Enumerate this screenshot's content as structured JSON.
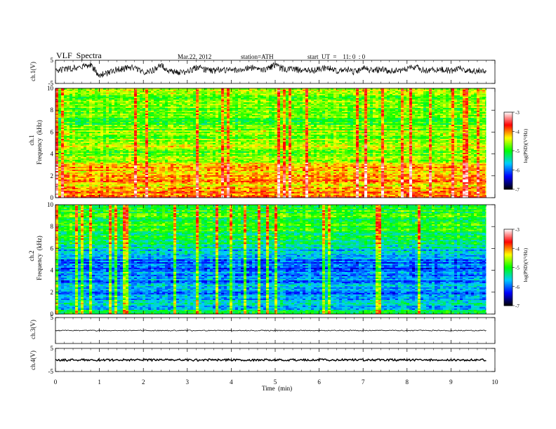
{
  "header": {
    "title": "VLF  Spectra",
    "date": "Mar.22, 2012",
    "station": "station=ATH",
    "start": "start  UT  =    11: 0  : 0"
  },
  "chart_data": [
    {
      "type": "line",
      "channel": "ch.1",
      "ylabel": "ch.1(V)",
      "ylim": [
        -5,
        5
      ],
      "yticks": [
        "5",
        "-5"
      ],
      "x": [
        0,
        0.2,
        0.4,
        0.6,
        0.8,
        1.0,
        1.2,
        1.4,
        1.6,
        1.8,
        2.0,
        2.2,
        2.4,
        2.6,
        2.8,
        3.0,
        3.2,
        3.4,
        3.6,
        3.8,
        4.0,
        4.2,
        4.4,
        4.6,
        4.8,
        5.0,
        5.2,
        5.4,
        5.6,
        5.8,
        6.0,
        6.2,
        6.4,
        6.6,
        6.8,
        7.0,
        7.2,
        7.4,
        7.6,
        7.8,
        8.0,
        8.2,
        8.4,
        8.6,
        8.8,
        9.0,
        9.2,
        9.4,
        9.6,
        9.8
      ],
      "values": [
        0.5,
        1.0,
        1.5,
        2.5,
        2.8,
        -1.5,
        -0.5,
        1.0,
        1.5,
        2.0,
        0.0,
        0.5,
        2.5,
        0.5,
        -0.5,
        0.0,
        2.0,
        1.0,
        0.5,
        1.0,
        0.5,
        1.0,
        2.0,
        1.5,
        1.0,
        3.0,
        1.0,
        1.5,
        0.5,
        0.5,
        1.0,
        2.0,
        0.5,
        1.5,
        0.0,
        1.5,
        0.5,
        1.0,
        0.5,
        0.5,
        1.5,
        2.0,
        0.5,
        1.0,
        1.0,
        0.5,
        1.5,
        0.5,
        0.5,
        0.5
      ]
    },
    {
      "type": "heatmap",
      "channel": "ch.1",
      "ylabel": "ch.1",
      "ylabel2": "Frequency  (kHz)",
      "ylim": [
        0,
        10
      ],
      "yticks": [
        "0",
        "2",
        "4",
        "6",
        "8",
        "10"
      ],
      "colorbar": {
        "label": "log(PSD)(V²/Hz)",
        "ticks": [
          "-3",
          "-4",
          "-5",
          "-6",
          "-7"
        ]
      },
      "profile_freq_khz": [
        0,
        0.5,
        1,
        1.5,
        2,
        2.5,
        3,
        3.5,
        4,
        4.5,
        5,
        5.5,
        6,
        6.5,
        7,
        7.5,
        8,
        8.5,
        9,
        9.5,
        10
      ],
      "profile_log_psd": [
        -3.6,
        -4.0,
        -4.2,
        -4.1,
        -4.1,
        -4.3,
        -4.2,
        -4.6,
        -4.7,
        -4.7,
        -4.4,
        -4.7,
        -4.6,
        -4.8,
        -4.9,
        -4.8,
        -4.8,
        -4.7,
        -4.7,
        -4.6,
        -4.6
      ]
    },
    {
      "type": "heatmap",
      "channel": "ch.2",
      "ylabel": "ch.2",
      "ylabel2": "Frequency  (kHz)",
      "ylim": [
        0,
        10
      ],
      "yticks": [
        "0",
        "2",
        "4",
        "6",
        "8",
        "10"
      ],
      "colorbar": {
        "label": "log(PSD)(V²/Hz)",
        "ticks": [
          "-3",
          "-4",
          "-5",
          "-6",
          "-7"
        ]
      },
      "profile_freq_khz": [
        0,
        0.5,
        1,
        1.5,
        2,
        2.5,
        3,
        3.5,
        4,
        4.5,
        5,
        5.5,
        6,
        6.5,
        7,
        7.5,
        8,
        8.5,
        9,
        9.5,
        10
      ],
      "profile_log_psd": [
        -5.0,
        -5.6,
        -5.5,
        -5.8,
        -5.9,
        -5.7,
        -5.9,
        -5.8,
        -6.0,
        -6.1,
        -5.9,
        -5.8,
        -5.5,
        -5.3,
        -5.2,
        -5.1,
        -5.0,
        -5.0,
        -5.0,
        -5.0,
        -5.1
      ]
    },
    {
      "type": "line",
      "channel": "ch.3",
      "ylabel": "ch.3(V)",
      "ylim": [
        -5,
        5
      ],
      "yticks": [
        "5"
      ],
      "x": [
        0,
        9.8
      ],
      "values": [
        0,
        0
      ]
    },
    {
      "type": "line",
      "channel": "ch.4",
      "ylabel": "ch.4(V)",
      "ylim": [
        -5,
        5
      ],
      "yticks": [
        "5",
        "-5"
      ],
      "x": [
        0,
        9.8
      ],
      "values": [
        0,
        0
      ]
    }
  ],
  "xaxis": {
    "label": "Time  (min)",
    "ticks": [
      "0",
      "1",
      "2",
      "3",
      "4",
      "5",
      "6",
      "7",
      "8",
      "9",
      "10"
    ],
    "xlim": [
      0,
      10
    ],
    "data_end": 9.8
  },
  "colors": {
    "psd_scale": [
      "#000000",
      "#0000ff",
      "#00ccff",
      "#00ff00",
      "#ffff00",
      "#ff0000",
      "#ffffff"
    ]
  }
}
